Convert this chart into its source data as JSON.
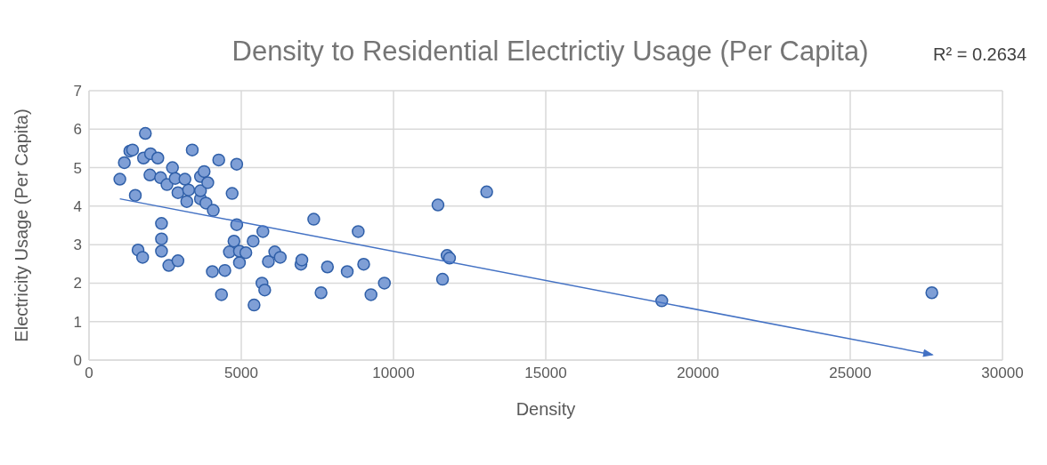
{
  "chart_data": {
    "type": "scatter",
    "title": "Density to Residential Electrictiy Usage (Per Capita)",
    "annotations": [
      "R² = 0.2634"
    ],
    "xlabel": "Density",
    "ylabel": "Electricity Usage (Per Capita)",
    "xlim": [
      0,
      30000
    ],
    "xticks": [
      0,
      5000,
      10000,
      15000,
      20000,
      25000,
      30000
    ],
    "ylim": [
      0,
      7
    ],
    "yticks": [
      0,
      1,
      2,
      3,
      4,
      5,
      6,
      7
    ],
    "grid": true,
    "marker": "circle",
    "series": [
      {
        "color": "#7f9fd6",
        "x": [
          1012,
          1160,
          1340,
          1430,
          1850,
          1520,
          1610,
          1760,
          1790,
          2020,
          2000,
          2260,
          2350,
          2380,
          2380,
          2380,
          2560,
          2620,
          2740,
          2830,
          2920,
          2920,
          3150,
          3210,
          3270,
          3390,
          3660,
          3660,
          3660,
          3780,
          3840,
          3900,
          4050,
          4080,
          4260,
          4350,
          4460,
          4610,
          4700,
          4760,
          4850,
          4850,
          4940,
          4940,
          5150,
          5390,
          5420,
          5680,
          5710,
          5770,
          5890,
          6100,
          6280,
          6960,
          6990,
          7380,
          7620,
          7830,
          8480,
          8840,
          9020,
          9260,
          9700,
          11460,
          11610,
          11760,
          11840,
          13060,
          18810,
          27680
        ],
        "values": [
          4.7,
          5.13,
          5.43,
          5.46,
          5.89,
          4.28,
          2.86,
          2.67,
          5.25,
          5.36,
          4.81,
          5.25,
          4.74,
          3.55,
          3.15,
          2.83,
          4.56,
          2.46,
          5.0,
          4.72,
          2.58,
          4.35,
          4.7,
          4.12,
          4.42,
          5.46,
          4.77,
          4.19,
          4.4,
          4.9,
          4.08,
          4.61,
          2.3,
          3.89,
          5.2,
          1.7,
          2.33,
          2.81,
          4.33,
          3.09,
          5.09,
          3.52,
          2.53,
          2.83,
          2.79,
          3.09,
          1.43,
          2.0,
          3.34,
          1.82,
          2.56,
          2.81,
          2.67,
          2.49,
          2.6,
          3.66,
          1.75,
          2.42,
          2.3,
          3.34,
          2.49,
          1.7,
          2.0,
          4.03,
          2.1,
          2.72,
          2.65,
          4.37,
          1.54,
          1.75
        ]
      },
      {
        "type": "line",
        "marker": "none",
        "color": "#4472c4",
        "x": [
          1012,
          27700
        ],
        "values": [
          4.19,
          0.14
        ]
      }
    ]
  }
}
